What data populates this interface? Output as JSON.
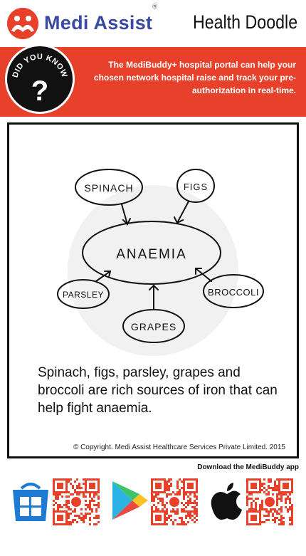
{
  "header": {
    "brand": "Medi Assist",
    "registered_mark": "®",
    "title": "Health Doodle"
  },
  "banner": {
    "badge_text": "DID YOU KNOW",
    "badge_glyph": "?",
    "message": "The MediBuddy+ hospital portal can help your chosen network hospital raise and track your pre-authorization in real-time."
  },
  "doodle": {
    "center": "ANAEMIA",
    "items": [
      "SPINACH",
      "FIGS",
      "PARSLEY",
      "GRAPES",
      "BROCCOLI"
    ],
    "caption": "Spinach, figs, parsley, grapes and broccoli are rich sources of iron that can help fight anaemia.",
    "copyright": "© Copyright. Medi Assist Healthcare Services Private Limited. 2015"
  },
  "footer": {
    "download_label": "Download the MediBuddy app",
    "stores": [
      {
        "name": "Windows Store",
        "icon": "windows-store-icon"
      },
      {
        "name": "Google Play",
        "icon": "google-play-icon"
      },
      {
        "name": "App Store",
        "icon": "apple-icon"
      }
    ]
  },
  "colors": {
    "brand_red": "#e8412b",
    "brand_blue": "#3a4aa4",
    "windows_blue": "#1e7bd4"
  }
}
